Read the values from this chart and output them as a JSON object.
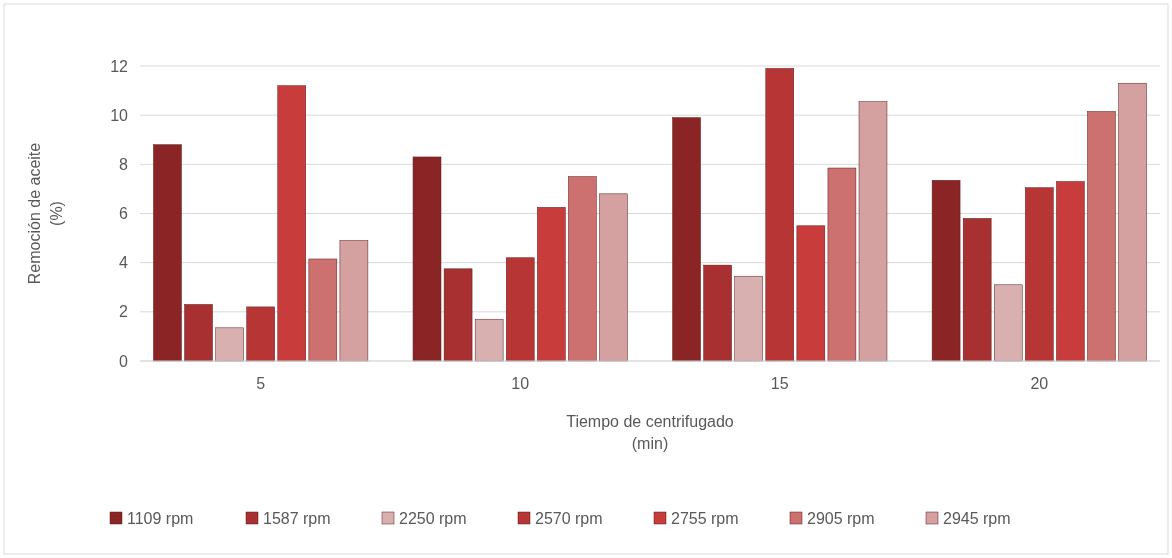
{
  "chart_data": {
    "type": "bar",
    "xlabel": "Tiempo de centrifugado\n(min)",
    "ylabel": "Remoción de aceite\n(%)",
    "categories": [
      "5",
      "10",
      "15",
      "20"
    ],
    "series": [
      {
        "name": "1109 rpm",
        "color": "#8b2525",
        "values": [
          8.8,
          8.3,
          9.9,
          7.35
        ]
      },
      {
        "name": "1587 rpm",
        "color": "#a83030",
        "values": [
          2.3,
          3.75,
          3.9,
          5.8
        ]
      },
      {
        "name": "2250 rpm",
        "color": "#d8b0b0",
        "values": [
          1.35,
          1.7,
          3.45,
          3.1
        ]
      },
      {
        "name": "2570 rpm",
        "color": "#b83535",
        "values": [
          2.2,
          4.2,
          11.9,
          7.05
        ]
      },
      {
        "name": "2755 rpm",
        "color": "#c83c3c",
        "values": [
          11.2,
          6.25,
          5.5,
          7.3
        ]
      },
      {
        "name": "2905 rpm",
        "color": "#cc7070",
        "values": [
          4.15,
          7.5,
          7.85,
          10.15
        ]
      },
      {
        "name": "2945 rpm",
        "color": "#d4a0a0",
        "values": [
          4.9,
          6.8,
          10.55,
          11.3
        ]
      }
    ],
    "ylim": [
      0,
      12
    ],
    "yticks": [
      0,
      2,
      4,
      6,
      8,
      10,
      12
    ],
    "grid": "y",
    "legend": "bottom"
  }
}
